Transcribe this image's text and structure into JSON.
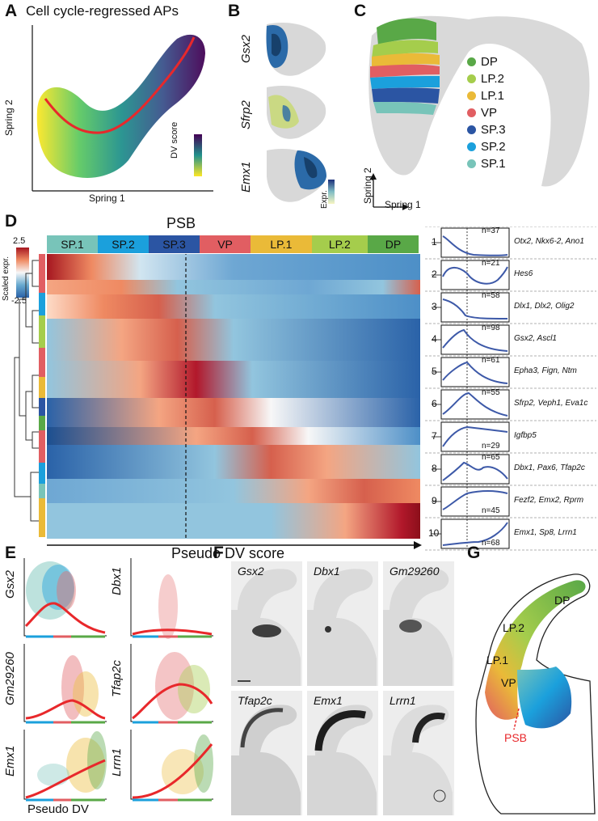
{
  "panel_labels": {
    "A": "A",
    "B": "B",
    "C": "C",
    "D": "D",
    "E": "E",
    "F": "F",
    "G": "G"
  },
  "colors": {
    "DP": "#59a847",
    "LP2": "#a5cd4c",
    "LP1": "#eaba38",
    "VP": "#e15e62",
    "SP3": "#2b55a3",
    "SP2": "#1ba0dc",
    "SP1": "#78c4b9",
    "trend": "#e8282b",
    "heat_low": "#2a62a8",
    "heat_mid": "#f7f7f7",
    "heat_high": "#a61720",
    "cluster_line": "#3d59a8"
  },
  "panel_a": {
    "title": "Cell cycle-regressed APs",
    "xlabel": "Spring 1",
    "ylabel": "Spring 2",
    "colorbar_label": "DV score"
  },
  "panel_b": {
    "genes": [
      "Gsx2",
      "Sfrp2",
      "Emx1"
    ],
    "colorbar_label": "Expr."
  },
  "panel_c": {
    "legend": [
      {
        "label": "DP",
        "color": "#59a847"
      },
      {
        "label": "LP.2",
        "color": "#a5cd4c"
      },
      {
        "label": "LP.1",
        "color": "#eaba38"
      },
      {
        "label": "VP",
        "color": "#e15e62"
      },
      {
        "label": "SP.3",
        "color": "#2b55a3"
      },
      {
        "label": "SP.2",
        "color": "#1ba0dc"
      },
      {
        "label": "SP.1",
        "color": "#78c4b9"
      }
    ],
    "axis_x": "Spring 1",
    "axis_y": "Spring 2"
  },
  "panel_d": {
    "psb_label": "PSB",
    "regions": [
      {
        "label": "SP.1",
        "color": "#78c4b9"
      },
      {
        "label": "SP.2",
        "color": "#1ba0dc"
      },
      {
        "label": "SP.3",
        "color": "#2b55a3"
      },
      {
        "label": "VP",
        "color": "#e15e62"
      },
      {
        "label": "LP.1",
        "color": "#eaba38"
      },
      {
        "label": "LP.2",
        "color": "#a5cd4c"
      },
      {
        "label": "DP",
        "color": "#59a847"
      }
    ],
    "scale_label": "Scaled expr.",
    "scale_max": "2.5",
    "scale_min": "-2.5",
    "xlabel": "Pseudo DV score",
    "clusters": [
      {
        "id": "1",
        "n": "n=37",
        "genes": "Otx2, Nkx6-2, Ano1"
      },
      {
        "id": "2",
        "n": "n=21",
        "genes": "Hes6"
      },
      {
        "id": "3",
        "n": "n=58",
        "genes": "Dlx1, Dlx2, Olig2"
      },
      {
        "id": "4",
        "n": "n=98",
        "genes": "Gsx2, Ascl1"
      },
      {
        "id": "5",
        "n": "n=61",
        "genes": "Epha3, Fign, Ntm"
      },
      {
        "id": "6",
        "n": "n=55",
        "genes": "Sfrp2, Veph1, Eva1c"
      },
      {
        "id": "7",
        "n": "n=29",
        "genes": "Igfbp5"
      },
      {
        "id": "8",
        "n": "n=65",
        "genes": "Dbx1, Pax6, Tfap2c"
      },
      {
        "id": "9",
        "n": "n=45",
        "genes": "Fezf2, Emx2, Rprm"
      },
      {
        "id": "10",
        "n": "n=68",
        "genes": "Emx1, Sp8, Lrrn1"
      }
    ]
  },
  "panel_e": {
    "genes": [
      "Gsx2",
      "Dbx1",
      "Gm29260",
      "Tfap2c",
      "Emx1",
      "Lrrn1"
    ],
    "xlabel": "Pseudo DV"
  },
  "panel_f": {
    "genes": [
      "Gsx2",
      "Dbx1",
      "Gm29260",
      "Tfap2c",
      "Emx1",
      "Lrrn1"
    ]
  },
  "panel_g": {
    "labels": [
      "DP",
      "LP.2",
      "LP.1",
      "VP",
      "PSB"
    ]
  }
}
